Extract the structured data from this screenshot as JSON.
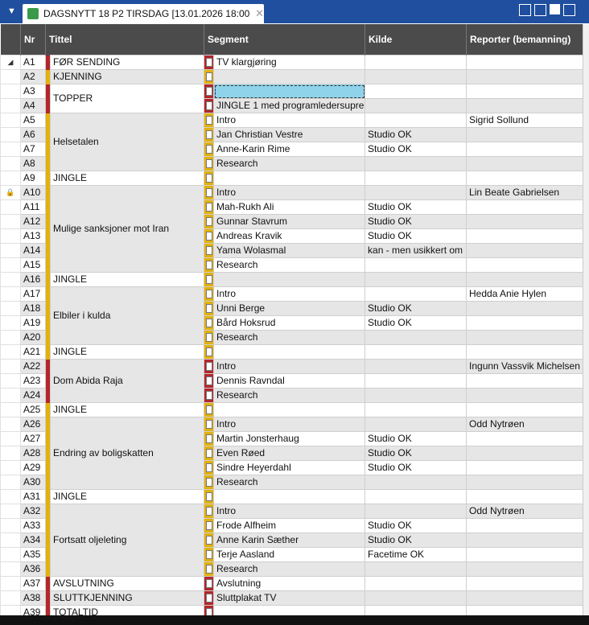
{
  "header": {
    "title": "DAGSNYTT 18 P2 TIRSDAG [13.01.2026 18:00"
  },
  "table": {
    "columns": [
      "Nr",
      "Tittel",
      "Segment",
      "Kilde",
      "Reporter (bemanning)"
    ],
    "stories": [
      {
        "title": "FØR SENDING",
        "color": "#b3262b",
        "rows": [
          {
            "nr": "A1",
            "segment": "TV klargjøring",
            "expanded": true
          }
        ]
      },
      {
        "title": "KJENNING",
        "color": "#e3b10c",
        "rows": [
          {
            "nr": "A2"
          }
        ]
      },
      {
        "title": "TOPPER",
        "color": "#b3262b",
        "rows": [
          {
            "nr": "A3",
            "selected": true
          },
          {
            "nr": "A4",
            "segment": "JINGLE 1 med programledersupre"
          }
        ]
      },
      {
        "title": "Helsetalen",
        "color": "#e3b10c",
        "rows": [
          {
            "nr": "A5",
            "segment": "Intro",
            "reporter": "Sigrid Sollund"
          },
          {
            "nr": "A6",
            "segment": "Jan Christian Vestre",
            "kilde": "Studio OK"
          },
          {
            "nr": "A7",
            "segment": "Anne-Karin Rime",
            "kilde": "Studio OK"
          },
          {
            "nr": "A8",
            "segment": "Research"
          }
        ]
      },
      {
        "title": "JINGLE",
        "color": "#e3b10c",
        "rows": [
          {
            "nr": "A9"
          }
        ]
      },
      {
        "title": "Mulige sanksjoner mot Iran",
        "color": "#e3b10c",
        "rows": [
          {
            "nr": "A10",
            "segment": "Intro",
            "reporter": "Lin Beate Gabrielsen",
            "locked": true
          },
          {
            "nr": "A11",
            "segment": "Mah-Rukh Ali",
            "kilde": "Studio OK"
          },
          {
            "nr": "A12",
            "segment": "Gunnar Stavrum",
            "kilde": "Studio OK"
          },
          {
            "nr": "A13",
            "segment": "Andreas Kravik",
            "kilde": "Studio OK"
          },
          {
            "nr": "A14",
            "segment": "Yama Wolasmal",
            "kilde": "kan - men usikkert om"
          },
          {
            "nr": "A15",
            "segment": "Research"
          }
        ]
      },
      {
        "title": "JINGLE",
        "color": "#e3b10c",
        "rows": [
          {
            "nr": "A16"
          }
        ]
      },
      {
        "title": "Elbiler i kulda",
        "color": "#e3b10c",
        "rows": [
          {
            "nr": "A17",
            "segment": "Intro",
            "reporter": "Hedda Anie Hylen"
          },
          {
            "nr": "A18",
            "segment": "Unni Berge",
            "kilde": "Studio OK"
          },
          {
            "nr": "A19",
            "segment": "Bård Hoksrud",
            "kilde": "Studio OK"
          },
          {
            "nr": "A20",
            "segment": "Research"
          }
        ]
      },
      {
        "title": "JINGLE",
        "color": "#e3b10c",
        "rows": [
          {
            "nr": "A21"
          }
        ]
      },
      {
        "title": "Dom Abida Raja",
        "color": "#b3262b",
        "rows": [
          {
            "nr": "A22",
            "segment": "Intro",
            "reporter": "Ingunn Vassvik Michelsen"
          },
          {
            "nr": "A23",
            "segment": "Dennis Ravndal"
          },
          {
            "nr": "A24",
            "segment": "Research"
          }
        ]
      },
      {
        "title": "JINGLE",
        "color": "#e3b10c",
        "rows": [
          {
            "nr": "A25"
          }
        ]
      },
      {
        "title": "Endring av boligskatten",
        "color": "#e3b10c",
        "rows": [
          {
            "nr": "A26",
            "segment": "Intro",
            "reporter": "Odd Nytrøen"
          },
          {
            "nr": "A27",
            "segment": "Martin Jonsterhaug",
            "kilde": "Studio OK"
          },
          {
            "nr": "A28",
            "segment": "Even Røed",
            "kilde": "Studio OK"
          },
          {
            "nr": "A29",
            "segment": "Sindre Heyerdahl",
            "kilde": "Studio OK"
          },
          {
            "nr": "A30",
            "segment": "Research"
          }
        ]
      },
      {
        "title": "JINGLE",
        "color": "#e3b10c",
        "rows": [
          {
            "nr": "A31"
          }
        ]
      },
      {
        "title": "Fortsatt oljeleting",
        "color": "#e3b10c",
        "rows": [
          {
            "nr": "A32",
            "segment": "Intro",
            "reporter": "Odd Nytrøen"
          },
          {
            "nr": "A33",
            "segment": "Frode Alfheim",
            "kilde": "Studio OK"
          },
          {
            "nr": "A34",
            "segment": "Anne Karin Sæther",
            "kilde": "Studio OK"
          },
          {
            "nr": "A35",
            "segment": "Terje Aasland",
            "kilde": "Facetime OK"
          },
          {
            "nr": "A36",
            "segment": "Research"
          }
        ]
      },
      {
        "title": "AVSLUTNING",
        "color": "#b3262b",
        "rows": [
          {
            "nr": "A37",
            "segment": "Avslutning"
          }
        ]
      },
      {
        "title": "SLUTTKJENNING",
        "color": "#b3262b",
        "rows": [
          {
            "nr": "A38",
            "segment": "Sluttplakat TV"
          }
        ]
      },
      {
        "title": "TOTALTID",
        "color": "#b3262b",
        "rows": [
          {
            "nr": "A39"
          }
        ]
      }
    ]
  }
}
